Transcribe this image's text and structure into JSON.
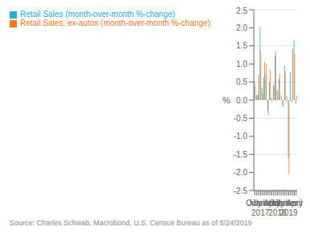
{
  "chart_data": {
    "type": "bar",
    "categories": [
      "July",
      null,
      null,
      "October\n2017",
      null,
      null,
      "January",
      null,
      null,
      "April",
      null,
      null,
      "July\n2018",
      null,
      null,
      "October",
      null,
      null,
      "January\n2019",
      null,
      null,
      "April",
      null
    ],
    "series": [
      {
        "name": "Retail Sales (month-over-month %-change)",
        "color": "#29aae2",
        "values": [
          0.5,
          0.15,
          0.15,
          2.02,
          0.35,
          0.62,
          0.72,
          -0.3,
          0.48,
          0.08,
          0.42,
          1.22,
          0.25,
          0.6,
          0.0,
          -0.15,
          0.95,
          -0.05,
          -1.6,
          0.78,
          -0.05,
          1.65,
          -0.1
        ]
      },
      {
        "name": "Retail Sales, ex-autos (month-over-month %-change)",
        "color": "#f47920",
        "values": [
          0.38,
          0.12,
          0.7,
          1.35,
          0.18,
          1.05,
          1.0,
          -0.42,
          0.85,
          -0.03,
          0.38,
          1.35,
          0.3,
          0.72,
          0.13,
          -0.2,
          0.8,
          0.1,
          -2.05,
          -0.02,
          1.42,
          1.28,
          0.12
        ]
      }
    ],
    "ylabel": "%",
    "ylim": [
      -2.5,
      2.5
    ],
    "yticks": [
      -2.5,
      {
        "value": -2.0,
        "label": "-2.0"
      },
      -1.5,
      {
        "value": -1.0,
        "label": "-1.0"
      },
      -0.5,
      {
        "value": 0.0,
        "label": "0.0"
      },
      0.5,
      {
        "value": 1.0,
        "label": "1.0"
      },
      1.5,
      {
        "value": 2.0,
        "label": "2.0"
      },
      2.5
    ],
    "grid": true,
    "legend": "upper left",
    "annotations": [
      "Source: Charles Schwab, Macrobond, U.S. Census Bureau as of 5/24/2019"
    ]
  }
}
